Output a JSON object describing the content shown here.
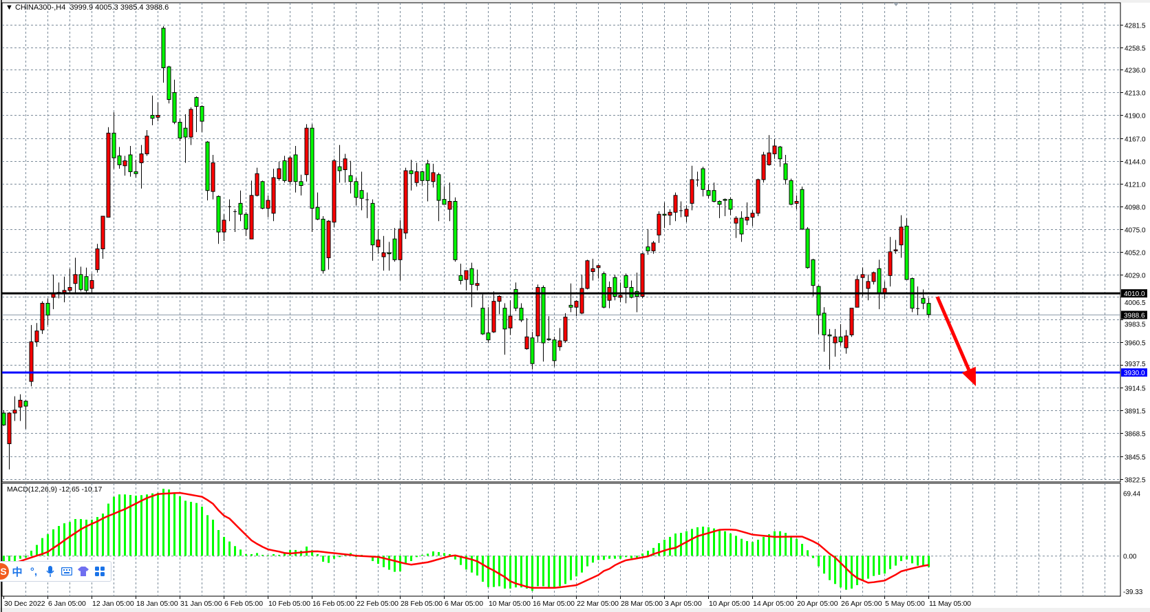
{
  "header": {
    "arrow": "▼",
    "symbol": "CHINA300-,H4",
    "open": "3999.9",
    "high": "4005.3",
    "low": "3985.4",
    "close": "3988.6"
  },
  "macd_label": "MACD(12,26,9) -12.65 -10.17",
  "ime_toolbar": {
    "logo": "S",
    "items": [
      "中",
      "°,",
      "mic-icon",
      "keyboard-icon",
      "skin-icon",
      "apps-icon"
    ],
    "lang_label": "中",
    "punct_label": "°,"
  },
  "colors": {
    "bull": "#ff0000",
    "bear": "#00ff00",
    "grid": "#7a8a99",
    "support_line": "#0000ff",
    "resistance_line": "#000000",
    "signal": "#ff0000",
    "histogram": "#00ff00",
    "arrow": "#ff0000"
  },
  "chart_data": {
    "type": "candlestick",
    "symbol": "CHINA300-",
    "timeframe": "H4",
    "price_axis": {
      "ticks": [
        "4281.5",
        "4258.5",
        "4236.0",
        "4213.0",
        "4190.0",
        "4167.0",
        "4144.0",
        "4121.0",
        "4098.0",
        "4075.0",
        "4052.0",
        "4029.0",
        "4006.5",
        "3983.5",
        "3960.5",
        "3937.5",
        "3914.5",
        "3891.5",
        "3868.5",
        "3845.5",
        "3822.5"
      ],
      "range": [
        3822.5,
        4281.5
      ]
    },
    "time_axis": {
      "labels": [
        "30 Dec 2022",
        "6 Jan 05:00",
        "12 Jan 05:00",
        "18 Jan 05:00",
        "31 Jan 05:00",
        "6 Feb 05:00",
        "10 Feb 05:00",
        "16 Feb 05:00",
        "22 Feb 05:00",
        "28 Feb 05:00",
        "6 Mar 05:00",
        "10 Mar 05:00",
        "16 Mar 05:00",
        "22 Mar 05:00",
        "28 Mar 05:00",
        "3 Apr 05:00",
        "10 Apr 05:00",
        "14 Apr 05:00",
        "20 Apr 05:00",
        "26 Apr 05:00",
        "5 May 05:00",
        "11 May 05:00"
      ]
    },
    "grid": true,
    "horizontal_lines": [
      {
        "price": 4010.0,
        "label": "4010.0",
        "color": "#000000"
      },
      {
        "price": 3930.0,
        "label": "3930.0",
        "color": "#0000ff"
      }
    ],
    "current_price": {
      "price": 3988.6,
      "label": "3988.6"
    },
    "annotation": {
      "type": "arrow",
      "direction": "down",
      "from_price": 4010.0,
      "to_price": 3921.0,
      "color": "#ff0000"
    },
    "candles_ohlc": [
      [
        3889,
        3892,
        3876,
        3877
      ],
      [
        3858,
        3890,
        3832,
        3889
      ],
      [
        3889,
        3906,
        3881,
        3892
      ],
      [
        3895,
        3908,
        3881,
        3902
      ],
      [
        3901,
        3902,
        3873,
        3896
      ],
      [
        3921,
        3978,
        3916,
        3961
      ],
      [
        3961,
        3980,
        3956,
        3972
      ],
      [
        3973,
        4002,
        3969,
        4000
      ],
      [
        4000,
        4005,
        3978,
        3988
      ],
      [
        4006,
        4029,
        3994,
        4010
      ],
      [
        4011,
        4021,
        4005,
        4010
      ],
      [
        4011,
        4027,
        4001,
        4013
      ],
      [
        4013,
        4035,
        4010,
        4016
      ],
      [
        4020,
        4046,
        4010,
        4029
      ],
      [
        4029,
        4037,
        4012,
        4014
      ],
      [
        4027,
        4036,
        4010,
        4013
      ],
      [
        4015,
        4030,
        4010,
        4023
      ],
      [
        4034,
        4060,
        4031,
        4055
      ],
      [
        4055,
        4088,
        4045,
        4088
      ],
      [
        4087,
        4178,
        4087,
        4172
      ],
      [
        4172,
        4193,
        4136,
        4147
      ],
      [
        4149,
        4158,
        4136,
        4140
      ],
      [
        4139,
        4149,
        4129,
        4144
      ],
      [
        4150,
        4159,
        4128,
        4133
      ],
      [
        4133,
        4145,
        4127,
        4131
      ],
      [
        4142,
        4160,
        4116,
        4151
      ],
      [
        4151,
        4175,
        4149,
        4169
      ],
      [
        4190,
        4210,
        4180,
        4187
      ],
      [
        4188,
        4203,
        4184,
        4190
      ],
      [
        4278,
        4280,
        4223,
        4238
      ],
      [
        4239,
        4240,
        4202,
        4206
      ],
      [
        4213,
        4226,
        4181,
        4183
      ],
      [
        4183,
        4187,
        4164,
        4167
      ],
      [
        4177,
        4191,
        4142,
        4168
      ],
      [
        4168,
        4198,
        4160,
        4196
      ],
      [
        4208,
        4209,
        4173,
        4199
      ],
      [
        4199,
        4200,
        4173,
        4184
      ],
      [
        4163,
        4164,
        4104,
        4114
      ],
      [
        4113,
        4150,
        4105,
        4142
      ],
      [
        4108,
        4109,
        4060,
        4072
      ],
      [
        4072,
        4090,
        4063,
        4084
      ],
      [
        4098,
        4105,
        4083,
        4098
      ],
      [
        4093,
        4095,
        4072,
        4093
      ],
      [
        4101,
        4114,
        4083,
        4090
      ],
      [
        4090,
        4092,
        4068,
        4075
      ],
      [
        4065,
        4124,
        4065,
        4109
      ],
      [
        4109,
        4137,
        4108,
        4131
      ],
      [
        4123,
        4124,
        4095,
        4096
      ],
      [
        4096,
        4109,
        4087,
        4104
      ],
      [
        4091,
        4136,
        4083,
        4127
      ],
      [
        4126,
        4143,
        4124,
        4136
      ],
      [
        4144,
        4149,
        4122,
        4124
      ],
      [
        4123,
        4149,
        4120,
        4147
      ],
      [
        4150,
        4159,
        4112,
        4123
      ],
      [
        4123,
        4130,
        4109,
        4119
      ],
      [
        4130,
        4181,
        4123,
        4177
      ],
      [
        4177,
        4181,
        4072,
        4096
      ],
      [
        4097,
        4112,
        4084,
        4085
      ],
      [
        4085,
        4088,
        4030,
        4033
      ],
      [
        4046,
        4084,
        4034,
        4083
      ],
      [
        4082,
        4146,
        4077,
        4144
      ],
      [
        4138,
        4160,
        4122,
        4134
      ],
      [
        4135,
        4151,
        4122,
        4146
      ],
      [
        4129,
        4144,
        4111,
        4123
      ],
      [
        4123,
        4127,
        4099,
        4107
      ],
      [
        4114,
        4133,
        4094,
        4106
      ],
      [
        4105,
        4112,
        4086,
        4105
      ],
      [
        4101,
        4105,
        4043,
        4059
      ],
      [
        4057,
        4075,
        4050,
        4064
      ],
      [
        4047,
        4068,
        4033,
        4051
      ],
      [
        4051,
        4062,
        4033,
        4050
      ],
      [
        4065,
        4076,
        4042,
        4044
      ],
      [
        4044,
        4084,
        4023,
        4075
      ],
      [
        4071,
        4137,
        4065,
        4134
      ],
      [
        4134,
        4145,
        4114,
        4131
      ],
      [
        4122,
        4142,
        4118,
        4133
      ],
      [
        4133,
        4134,
        4119,
        4124
      ],
      [
        4141,
        4145,
        4103,
        4124
      ],
      [
        4123,
        4141,
        4117,
        4132
      ],
      [
        4130,
        4132,
        4083,
        4104
      ],
      [
        4105,
        4118,
        4100,
        4100
      ],
      [
        4095,
        4122,
        4083,
        4103
      ],
      [
        4103,
        4107,
        4042,
        4044
      ],
      [
        4028,
        4040,
        4019,
        4023
      ],
      [
        4024,
        4033,
        4013,
        4033
      ],
      [
        4035,
        4041,
        3996,
        4019
      ],
      [
        4018,
        4034,
        4013,
        4020
      ],
      [
        3995,
        4009,
        3968,
        3969
      ],
      [
        3970,
        3996,
        3960,
        3963
      ],
      [
        3971,
        4012,
        3970,
        4002
      ],
      [
        4002,
        4008,
        3989,
        4007
      ],
      [
        3995,
        4000,
        3948,
        3974
      ],
      [
        3975,
        4003,
        3968,
        3987
      ],
      [
        4014,
        4021,
        3992,
        3995
      ],
      [
        3995,
        4000,
        3981,
        3983
      ],
      [
        3954,
        3985,
        3953,
        3966
      ],
      [
        3965,
        3971,
        3933,
        3939
      ],
      [
        3967,
        4019,
        3960,
        4016
      ],
      [
        4016,
        4018,
        3941,
        3960
      ],
      [
        3964,
        3987,
        3962,
        3963
      ],
      [
        3963,
        3966,
        3936,
        3942
      ],
      [
        3956,
        3975,
        3952,
        3962
      ],
      [
        3962,
        3990,
        3960,
        3986
      ],
      [
        3998,
        4020,
        3991,
        3996
      ],
      [
        3996,
        4003,
        3987,
        4002
      ],
      [
        3990,
        4029,
        3989,
        4015
      ],
      [
        4015,
        4044,
        4014,
        4043
      ],
      [
        4032,
        4045,
        4023,
        4035
      ],
      [
        4036,
        4039,
        4025,
        4038
      ],
      [
        4030,
        4032,
        3995,
        3996
      ],
      [
        4003,
        4022,
        3995,
        4016
      ],
      [
        4026,
        4029,
        4003,
        4007
      ],
      [
        4006,
        4021,
        4001,
        4008
      ],
      [
        4028,
        4030,
        4000,
        4016
      ],
      [
        4016,
        4023,
        4005,
        4006
      ],
      [
        4012,
        4031,
        3991,
        4007
      ],
      [
        4007,
        4051,
        4005,
        4050
      ],
      [
        4057,
        4075,
        4049,
        4053
      ],
      [
        4053,
        4063,
        4050,
        4061
      ],
      [
        4069,
        4093,
        4061,
        4090
      ],
      [
        4090,
        4102,
        4076,
        4089
      ],
      [
        4089,
        4095,
        4079,
        4092
      ],
      [
        4092,
        4112,
        4083,
        4109
      ],
      [
        4094,
        4103,
        4087,
        4094
      ],
      [
        4088,
        4099,
        4082,
        4095
      ],
      [
        4101,
        4139,
        4094,
        4125
      ],
      [
        4125,
        4133,
        4118,
        4125
      ],
      [
        4136,
        4138,
        4108,
        4115
      ],
      [
        4114,
        4120,
        4106,
        4109
      ],
      [
        4114,
        4122,
        4102,
        4103
      ],
      [
        4103,
        4104,
        4086,
        4100
      ],
      [
        4105,
        4106,
        4088,
        4104
      ],
      [
        4105,
        4107,
        4089,
        4095
      ],
      [
        4081,
        4088,
        4066,
        4086
      ],
      [
        4086,
        4093,
        4062,
        4070
      ],
      [
        4084,
        4102,
        4079,
        4087
      ],
      [
        4087,
        4094,
        4078,
        4091
      ],
      [
        4091,
        4126,
        4088,
        4125
      ],
      [
        4125,
        4153,
        4122,
        4150
      ],
      [
        4140,
        4170,
        4139,
        4152
      ],
      [
        4151,
        4166,
        4146,
        4159
      ],
      [
        4158,
        4159,
        4138,
        4146
      ],
      [
        4141,
        4150,
        4120,
        4125
      ],
      [
        4124,
        4126,
        4099,
        4100
      ],
      [
        4101,
        4109,
        4095,
        4103
      ],
      [
        4115,
        4118,
        4074,
        4075
      ],
      [
        4075,
        4077,
        4035,
        4036
      ],
      [
        4044,
        4045,
        4007,
        4018
      ],
      [
        4017,
        4018,
        3969,
        3988
      ],
      [
        3990,
        3996,
        3951,
        3968
      ],
      [
        3968,
        3974,
        3933,
        3967
      ],
      [
        3960,
        3974,
        3946,
        3966
      ],
      [
        3966,
        3979,
        3957,
        3961
      ],
      [
        3955,
        3973,
        3949,
        3967
      ],
      [
        3968,
        3995,
        3966,
        3995
      ],
      [
        3996,
        4028,
        3996,
        4024
      ],
      [
        4026,
        4036,
        4007,
        4029
      ],
      [
        4015,
        4029,
        4003,
        4022
      ],
      [
        4022,
        4032,
        4019,
        4031
      ],
      [
        4035,
        4044,
        3994,
        4010
      ],
      [
        4010,
        4022,
        4004,
        4015
      ],
      [
        4028,
        4067,
        4017,
        4052
      ],
      [
        4053,
        4064,
        4050,
        4054
      ],
      [
        4059,
        4089,
        4046,
        4077
      ],
      [
        4078,
        4086,
        4024,
        4024
      ],
      [
        4025,
        4026,
        3991,
        3995
      ],
      [
        3995,
        4017,
        3988,
        3995
      ],
      [
        4005,
        4014,
        3994,
        4000
      ],
      [
        3999.9,
        4005.3,
        3985.4,
        3988.6
      ]
    ],
    "macd": {
      "params": "12,26,9",
      "axis_ticks": [
        "69.44",
        "0.00",
        "-39.33"
      ],
      "range": [
        -44,
        80
      ],
      "histogram": [
        -7.1,
        -6.6,
        -5.9,
        -3.3,
        -2,
        5.6,
        12,
        19.6,
        23.9,
        29.3,
        33,
        36,
        37.4,
        40.7,
        40.7,
        40,
        40,
        43,
        46.8,
        57.8,
        65.4,
        68,
        68,
        67.4,
        66.7,
        67.2,
        68,
        69.2,
        69.7,
        74.3,
        73.5,
        68.7,
        65.9,
        61,
        59.8,
        58.5,
        54.5,
        45,
        40,
        28.5,
        20.9,
        15.8,
        10.7,
        6.9,
        1.8,
        1.8,
        3,
        1,
        0.5,
        1.8,
        1,
        3.6,
        6.4,
        6.4,
        5.6,
        10.2,
        6.1,
        1.8,
        -6.6,
        -7.9,
        -3.3,
        -1.5,
        2.3,
        3,
        -1.5,
        1,
        -0.8,
        -5.9,
        -8.9,
        -12.7,
        -15.5,
        -17.8,
        -17.3,
        -8.9,
        -5.9,
        -1.5,
        1,
        2.3,
        4.8,
        4.1,
        3,
        1.8,
        -4.1,
        -10.2,
        -15.3,
        -18.6,
        -21.9,
        -28.8,
        -34.6,
        -34.6,
        -33.8,
        -36.4,
        -36.4,
        -35.1,
        -35.1,
        -36.4,
        -38.9,
        -33.8,
        -33.8,
        -34.6,
        -35.6,
        -33.8,
        -31.3,
        -27,
        -22.9,
        -18.6,
        -11.7,
        -7.6,
        -4.6,
        -4.6,
        -3.3,
        -3.3,
        -3.3,
        -1.5,
        -2.8,
        -2,
        2.5,
        5.6,
        8.7,
        14,
        17.8,
        20.9,
        24.7,
        25.4,
        27.2,
        29.8,
        31.6,
        32.3,
        31.6,
        30.3,
        29,
        27.2,
        24.7,
        22.1,
        18.8,
        16.3,
        15.3,
        17.8,
        20.9,
        23.9,
        27.2,
        27.2,
        25.4,
        22.1,
        18.8,
        13.2,
        6.1,
        -2.5,
        -11.7,
        -19.8,
        -27,
        -31.3,
        -35.1,
        -37.7,
        -36.4,
        -32.6,
        -28,
        -25.4,
        -22.4,
        -21.1,
        -19.8,
        -14.8,
        -10.9,
        -5.9,
        -4.1,
        -8.4,
        -10.9,
        -10.9,
        -12.65
      ],
      "signal": [
        -9,
        -8.7,
        -8.2,
        -6,
        -3.9,
        -1.9,
        0.1,
        2,
        4.3,
        8.6,
        12.6,
        17,
        21.3,
        25.3,
        29.4,
        32.6,
        35.4,
        38.1,
        41.5,
        44.2,
        46.6,
        49.3,
        51.7,
        54.8,
        57.9,
        61,
        64,
        66.2,
        68.4,
        68.8,
        69.1,
        69.5,
        69.7,
        68.7,
        67.6,
        66.5,
        65.4,
        61.8,
        57.6,
        50.4,
        44.4,
        41.2,
        35.1,
        29,
        22.9,
        17,
        13.2,
        9.9,
        7.1,
        5.8,
        4.6,
        3.1,
        2.5,
        3.1,
        3.7,
        4.2,
        4.8,
        4.9,
        4.2,
        3.5,
        2.9,
        2.2,
        1.6,
        0.9,
        0,
        -0.3,
        -0.6,
        -1,
        -1.3,
        -2.7,
        -4.2,
        -5.7,
        -7.3,
        -8.8,
        -9.9,
        -9,
        -8.1,
        -7.2,
        -5.6,
        -3.8,
        -2.1,
        -0.4,
        0.4,
        -1.1,
        -2.6,
        -4.1,
        -6.2,
        -9.7,
        -13.3,
        -16.4,
        -20,
        -23.6,
        -28.2,
        -30.7,
        -32.5,
        -34.4,
        -35.6,
        -35.6,
        -35.6,
        -35.6,
        -35.6,
        -35,
        -34.2,
        -33.4,
        -32.6,
        -29.8,
        -27,
        -24.2,
        -21.3,
        -16.8,
        -14.5,
        -10.5,
        -7.5,
        -5,
        -4,
        -2.9,
        -1.8,
        -0.7,
        1.9,
        3.8,
        5.8,
        7.7,
        8.7,
        12,
        15.3,
        18.6,
        21.7,
        23.5,
        25.2,
        27,
        28.8,
        29,
        29,
        28.6,
        26.9,
        25.2,
        23.4,
        22.8,
        22.2,
        21.6,
        20.9,
        21,
        21.1,
        21.2,
        21.3,
        21.2,
        18.7,
        16,
        12.7,
        7.5,
        2.2,
        -2,
        -8,
        -14,
        -20,
        -24.7,
        -27.3,
        -29.9,
        -29.3,
        -28.4,
        -27.5,
        -24.2,
        -21,
        -17.3,
        -15.6,
        -14.1,
        -12.6,
        -11.2,
        -10.17
      ]
    }
  }
}
